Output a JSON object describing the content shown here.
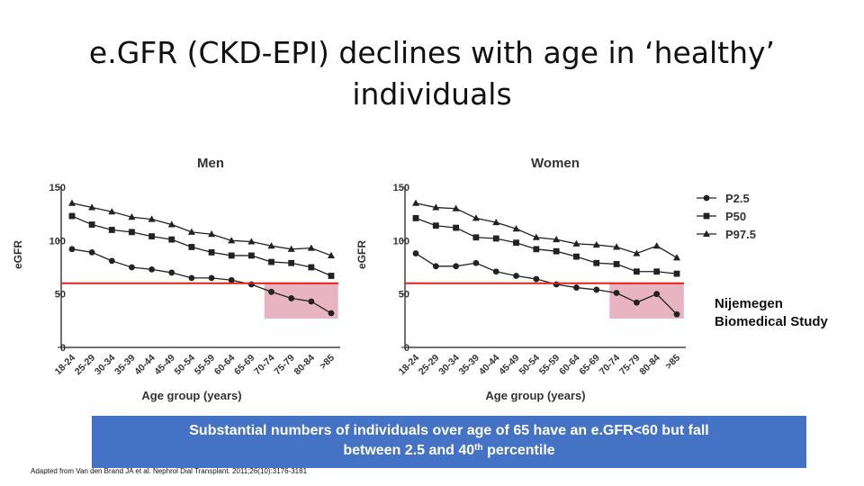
{
  "slide": {
    "title_line1": "e.GFR (CKD-EPI) declines with age in ‘healthy’",
    "title_line2": "individuals",
    "study_line1": "Nijemegen",
    "study_line2": "Biomedical Study",
    "callout_part1": "Substantial numbers of individuals over age of 65 have an e.GFR<60 but fall",
    "callout_part2": "between 2.5 and 40",
    "callout_sup": "th",
    "callout_part3": " percentile",
    "citation": "Adapted from Van den Brand JA et al. Nephrol Dial Transplant. 2011;26(10):3176-3181"
  },
  "colors": {
    "series": "#222222",
    "threshold_line": "#e02020",
    "highlight": "#e8b4c2",
    "callout_bg": "#4472c4"
  },
  "chart_data": [
    {
      "type": "line",
      "title": "Men",
      "xlabel": "Age group (years)",
      "ylabel": "eGFR",
      "ylim": [
        0,
        150
      ],
      "yticks": [
        0,
        50,
        100,
        150
      ],
      "categories": [
        "18-24",
        "25-29",
        "30-34",
        "35-39",
        "40-44",
        "45-49",
        "50-54",
        "55-59",
        "60-64",
        "65-69",
        "70-74",
        "75-79",
        "80-84",
        ">85"
      ],
      "threshold": 60,
      "highlight_from_category": "70-74",
      "highlight_y_range": [
        27,
        60
      ],
      "series": [
        {
          "name": "P2.5",
          "marker": "circle",
          "values": [
            92,
            89,
            81,
            75,
            73,
            70,
            65,
            65,
            63,
            59,
            52,
            46,
            43,
            32
          ]
        },
        {
          "name": "P50",
          "marker": "square",
          "values": [
            123,
            115,
            110,
            108,
            104,
            101,
            94,
            89,
            86,
            86,
            80,
            79,
            75,
            67
          ]
        },
        {
          "name": "P97.5",
          "marker": "triangle",
          "values": [
            135,
            131,
            127,
            122,
            120,
            115,
            108,
            106,
            100,
            99,
            95,
            92,
            93,
            86
          ]
        }
      ]
    },
    {
      "type": "line",
      "title": "Women",
      "xlabel": "Age group (years)",
      "ylabel": "eGFR",
      "ylim": [
        0,
        150
      ],
      "yticks": [
        0,
        50,
        100,
        150
      ],
      "categories": [
        "18-24",
        "25-29",
        "30-34",
        "35-39",
        "40-44",
        "45-49",
        "50-54",
        "55-59",
        "60-64",
        "65-69",
        "70-74",
        "75-79",
        "80-84",
        ">85"
      ],
      "threshold": 60,
      "highlight_from_category": "70-74",
      "highlight_y_range": [
        27,
        60
      ],
      "legend": {
        "position": "right",
        "entries": [
          "P2.5",
          "P50",
          "P97.5"
        ]
      },
      "series": [
        {
          "name": "P2.5",
          "marker": "circle",
          "values": [
            88,
            76,
            76,
            79,
            71,
            67,
            64,
            59,
            56,
            54,
            51,
            42,
            50,
            31
          ]
        },
        {
          "name": "P50",
          "marker": "square",
          "values": [
            121,
            114,
            112,
            103,
            102,
            98,
            92,
            90,
            85,
            79,
            78,
            71,
            71,
            69
          ]
        },
        {
          "name": "P97.5",
          "marker": "triangle",
          "values": [
            135,
            131,
            130,
            121,
            117,
            111,
            103,
            101,
            97,
            96,
            94,
            88,
            95,
            84
          ]
        }
      ]
    }
  ]
}
